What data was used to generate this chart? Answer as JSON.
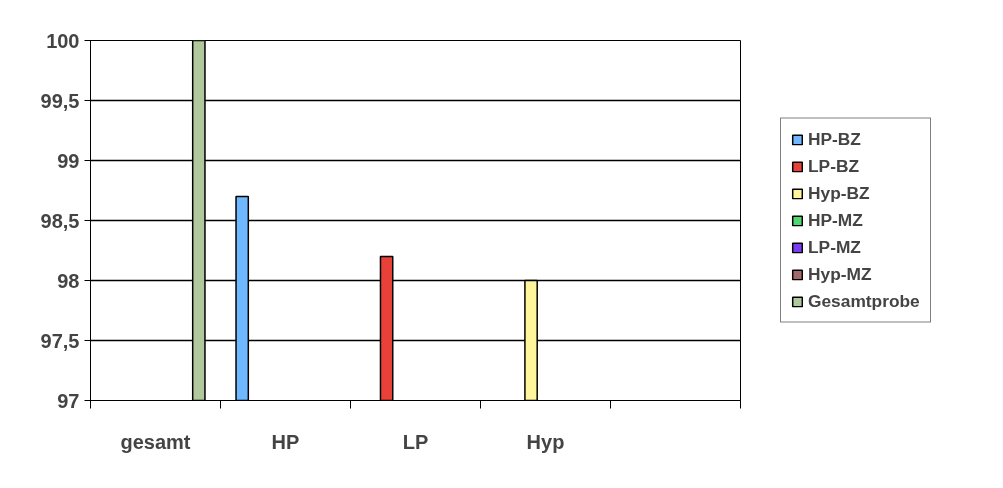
{
  "chart_data": {
    "type": "bar",
    "categories": [
      "gesamt",
      "HP",
      "LP",
      "Hyp",
      null
    ],
    "series": [
      {
        "name": "HP-BZ",
        "color": "#6fb7ff",
        "values": [
          null,
          98.7,
          null,
          null,
          null
        ]
      },
      {
        "name": "LP-BZ",
        "color": "#e8413a",
        "values": [
          null,
          null,
          98.2,
          null,
          null
        ]
      },
      {
        "name": "Hyp-BZ",
        "color": "#fff59a",
        "values": [
          null,
          null,
          null,
          98.0,
          null
        ]
      },
      {
        "name": "HP-MZ",
        "color": "#4fd870",
        "values": [
          null,
          null,
          null,
          null,
          null
        ]
      },
      {
        "name": "LP-MZ",
        "color": "#7b3cf0",
        "values": [
          null,
          null,
          null,
          null,
          null
        ]
      },
      {
        "name": "Hyp-MZ",
        "color": "#a06a6a",
        "values": [
          null,
          null,
          null,
          null,
          null
        ]
      },
      {
        "name": "Gesamtprobe",
        "color": "#b0c89c",
        "values": [
          100,
          null,
          null,
          null,
          null
        ]
      }
    ],
    "ylim": [
      97,
      100
    ],
    "yticks": [
      97,
      {
        "value": 97.5,
        "label": "97,5"
      },
      98,
      {
        "value": 98.5,
        "label": "98,5"
      },
      99,
      {
        "value": 99.5,
        "label": "99,5"
      },
      100
    ],
    "grid": "y",
    "legend": "right"
  }
}
